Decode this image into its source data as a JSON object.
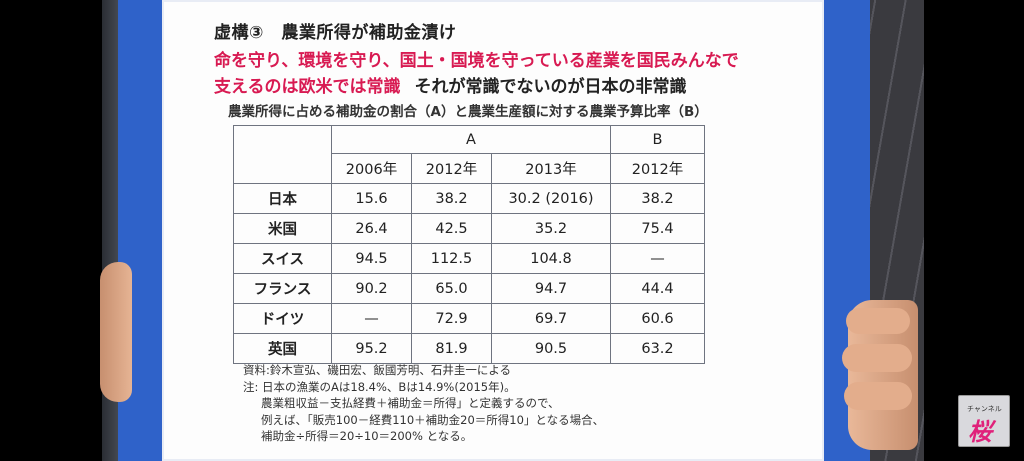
{
  "heading": {
    "title": "虚構③　農業所得が補助金漬け",
    "red_line1": "命を守り、環境を守り、国土・国境を守っている産業を国民みんなで",
    "red_line2": "支えるのは欧米では常識",
    "black_line2": "それが常識でないのが日本の非常識"
  },
  "table_title": "農業所得に占める補助金の割合（A）と農業生産額に対する農業予算比率（B）",
  "table": {
    "group_a": "A",
    "group_b": "B",
    "years": [
      "2006年",
      "2012年",
      "2013年",
      "2012年"
    ],
    "rows": [
      {
        "country": "日本",
        "v": [
          "15.6",
          "38.2",
          "30.2 (2016)",
          "38.2"
        ]
      },
      {
        "country": "米国",
        "v": [
          "26.4",
          "42.5",
          "35.2",
          "75.4"
        ]
      },
      {
        "country": "スイス",
        "v": [
          "94.5",
          "112.5",
          "104.8",
          "—"
        ]
      },
      {
        "country": "フランス",
        "v": [
          "90.2",
          "65.0",
          "94.7",
          "44.4"
        ]
      },
      {
        "country": "ドイツ",
        "v": [
          "—",
          "72.9",
          "69.7",
          "60.6"
        ]
      },
      {
        "country": "英国",
        "v": [
          "95.2",
          "81.9",
          "90.5",
          "63.2"
        ]
      }
    ]
  },
  "notes": {
    "source": "資料:鈴木宣弘、磯田宏、飯國芳明、石井圭一による",
    "note1": "注: 日本の漁業のAは18.4%、Bは14.9%(2015年)。",
    "note2": "農業粗収益－支払経費＋補助金＝所得」と定義するので、",
    "note3": "例えば、「販売100－経費110＋補助金20＝所得10」となる場合、",
    "note4": "補助金÷所得＝20÷10＝200% となる。"
  },
  "logo": {
    "small": "チャンネル",
    "big": "桜"
  }
}
